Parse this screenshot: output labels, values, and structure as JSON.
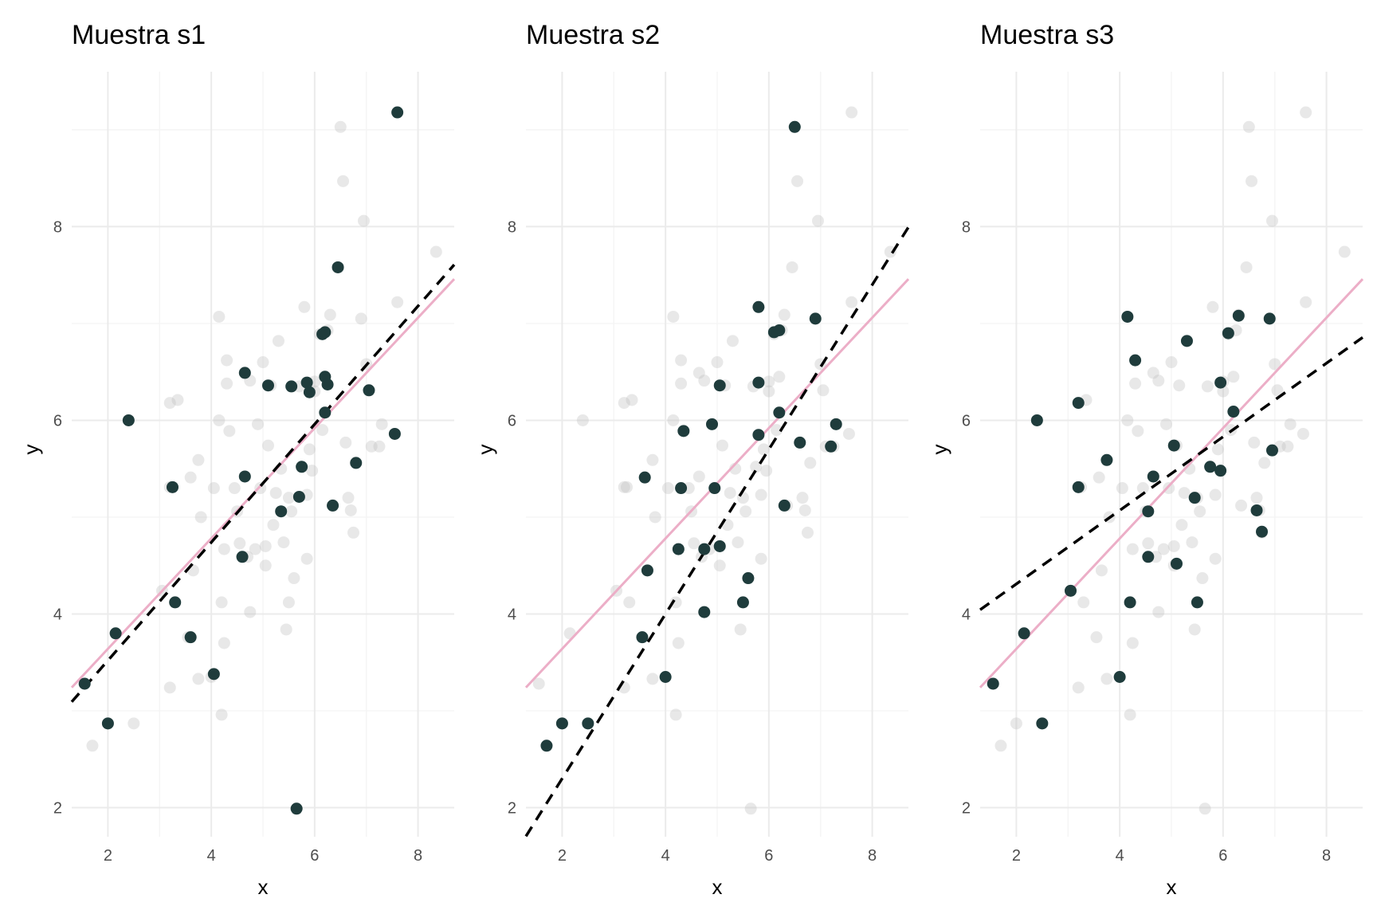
{
  "colors": {
    "background": "#ffffff",
    "grid_major": "#ebebeb",
    "grid_minor": "#f5f5f5",
    "population_point": "#bdbdbd",
    "sample_point": "#1f3c3c",
    "population_line": "#ecaec7",
    "sample_line": "#000000"
  },
  "chart_data": [
    {
      "type": "scatter",
      "title": "Muestra s1",
      "xlabel": "x",
      "ylabel": "y",
      "xlim": [
        1.3,
        8.7
      ],
      "ylim": [
        1.7,
        9.6
      ],
      "x_ticks": [
        2,
        4,
        6,
        8
      ],
      "y_ticks": [
        2,
        4,
        6,
        8
      ],
      "x_tick_labels": [
        "2",
        "4",
        "6",
        "8"
      ],
      "y_tick_labels": [
        "2",
        "4",
        "6",
        "8"
      ],
      "grid": true,
      "population_line": {
        "intercept": 2.5,
        "slope": 0.57,
        "style": "solid"
      },
      "sample_line": {
        "intercept": 2.3,
        "slope": 0.61,
        "style": "dashed"
      },
      "sample_points": [
        [
          1.55,
          3.28
        ],
        [
          2.0,
          2.87
        ],
        [
          2.15,
          3.8
        ],
        [
          2.4,
          6.0
        ],
        [
          3.25,
          5.31
        ],
        [
          3.3,
          4.12
        ],
        [
          3.6,
          3.76
        ],
        [
          4.05,
          3.38
        ],
        [
          4.6,
          4.59
        ],
        [
          4.65,
          5.42
        ],
        [
          4.65,
          6.49
        ],
        [
          5.1,
          6.36
        ],
        [
          5.35,
          5.06
        ],
        [
          5.55,
          6.35
        ],
        [
          5.7,
          5.21
        ],
        [
          5.65,
          1.99
        ],
        [
          5.75,
          5.52
        ],
        [
          5.85,
          6.39
        ],
        [
          5.9,
          6.29
        ],
        [
          6.15,
          6.89
        ],
        [
          6.2,
          6.45
        ],
        [
          6.2,
          6.91
        ],
        [
          6.2,
          6.08
        ],
        [
          6.25,
          6.37
        ],
        [
          6.35,
          5.12
        ],
        [
          6.45,
          7.58
        ],
        [
          6.8,
          5.56
        ],
        [
          7.05,
          6.31
        ],
        [
          7.55,
          5.86
        ],
        [
          7.6,
          9.18
        ]
      ]
    },
    {
      "type": "scatter",
      "title": "Muestra s2",
      "xlabel": "x",
      "ylabel": "y",
      "xlim": [
        1.3,
        8.7
      ],
      "ylim": [
        1.7,
        9.6
      ],
      "x_ticks": [
        2,
        4,
        6,
        8
      ],
      "y_ticks": [
        2,
        4,
        6,
        8
      ],
      "x_tick_labels": [
        "2",
        "4",
        "6",
        "8"
      ],
      "y_tick_labels": [
        "2",
        "4",
        "6",
        "8"
      ],
      "grid": true,
      "population_line": {
        "intercept": 2.5,
        "slope": 0.57,
        "style": "solid"
      },
      "sample_line": {
        "intercept": 0.6,
        "slope": 0.85,
        "style": "dashed"
      },
      "sample_points": [
        [
          1.7,
          2.64
        ],
        [
          2.0,
          2.87
        ],
        [
          2.5,
          2.87
        ],
        [
          3.55,
          3.76
        ],
        [
          3.6,
          5.41
        ],
        [
          3.65,
          4.45
        ],
        [
          4.0,
          3.35
        ],
        [
          4.25,
          4.67
        ],
        [
          4.3,
          5.3
        ],
        [
          4.35,
          5.89
        ],
        [
          4.75,
          4.02
        ],
        [
          4.75,
          4.67
        ],
        [
          4.9,
          5.96
        ],
        [
          4.95,
          5.3
        ],
        [
          5.05,
          4.7
        ],
        [
          5.05,
          6.36
        ],
        [
          5.5,
          4.12
        ],
        [
          5.6,
          4.37
        ],
        [
          5.8,
          7.17
        ],
        [
          5.8,
          6.39
        ],
        [
          5.8,
          5.85
        ],
        [
          6.1,
          6.91
        ],
        [
          6.2,
          6.93
        ],
        [
          6.2,
          6.08
        ],
        [
          6.3,
          5.12
        ],
        [
          6.5,
          9.03
        ],
        [
          6.6,
          5.77
        ],
        [
          6.9,
          7.05
        ],
        [
          7.2,
          5.73
        ],
        [
          7.3,
          5.96
        ]
      ]
    },
    {
      "type": "scatter",
      "title": "Muestra s3",
      "xlabel": "x",
      "ylabel": "y",
      "xlim": [
        1.3,
        8.7
      ],
      "ylim": [
        1.7,
        9.6
      ],
      "x_ticks": [
        2,
        4,
        6,
        8
      ],
      "y_ticks": [
        2,
        4,
        6,
        8
      ],
      "x_tick_labels": [
        "2",
        "4",
        "6",
        "8"
      ],
      "y_tick_labels": [
        "2",
        "4",
        "6",
        "8"
      ],
      "grid": true,
      "population_line": {
        "intercept": 2.5,
        "slope": 0.57,
        "style": "solid"
      },
      "sample_line": {
        "intercept": 3.55,
        "slope": 0.38,
        "style": "dashed"
      },
      "sample_points": [
        [
          1.55,
          3.28
        ],
        [
          2.15,
          3.8
        ],
        [
          2.4,
          6.0
        ],
        [
          2.5,
          2.87
        ],
        [
          3.05,
          4.24
        ],
        [
          3.2,
          6.18
        ],
        [
          3.2,
          5.31
        ],
        [
          3.75,
          5.59
        ],
        [
          4.0,
          3.35
        ],
        [
          4.15,
          7.07
        ],
        [
          4.2,
          4.12
        ],
        [
          4.3,
          6.62
        ],
        [
          4.55,
          5.06
        ],
        [
          4.55,
          4.59
        ],
        [
          4.65,
          5.42
        ],
        [
          5.05,
          5.74
        ],
        [
          5.1,
          4.52
        ],
        [
          5.3,
          6.82
        ],
        [
          5.45,
          5.2
        ],
        [
          5.5,
          4.12
        ],
        [
          5.75,
          5.52
        ],
        [
          5.95,
          5.48
        ],
        [
          5.95,
          6.39
        ],
        [
          6.1,
          6.9
        ],
        [
          6.2,
          6.09
        ],
        [
          6.3,
          7.08
        ],
        [
          6.65,
          5.07
        ],
        [
          6.75,
          4.85
        ],
        [
          6.9,
          7.05
        ],
        [
          6.95,
          5.69
        ]
      ]
    }
  ],
  "population_points": [
    [
      1.55,
      3.28
    ],
    [
      1.7,
      2.64
    ],
    [
      2.0,
      2.87
    ],
    [
      2.15,
      3.8
    ],
    [
      2.4,
      6.0
    ],
    [
      2.5,
      2.87
    ],
    [
      3.05,
      4.24
    ],
    [
      3.2,
      6.18
    ],
    [
      3.2,
      5.31
    ],
    [
      3.2,
      3.24
    ],
    [
      3.25,
      5.31
    ],
    [
      3.3,
      4.12
    ],
    [
      3.35,
      6.21
    ],
    [
      3.55,
      3.76
    ],
    [
      3.6,
      5.41
    ],
    [
      3.65,
      4.45
    ],
    [
      3.75,
      3.33
    ],
    [
      3.75,
      5.59
    ],
    [
      3.8,
      5.0
    ],
    [
      4.0,
      3.35
    ],
    [
      4.05,
      5.3
    ],
    [
      4.15,
      7.07
    ],
    [
      4.15,
      6.0
    ],
    [
      4.2,
      4.12
    ],
    [
      4.2,
      2.96
    ],
    [
      4.25,
      4.67
    ],
    [
      4.25,
      3.7
    ],
    [
      4.3,
      6.62
    ],
    [
      4.3,
      6.38
    ],
    [
      4.35,
      5.89
    ],
    [
      4.45,
      5.3
    ],
    [
      4.5,
      5.06
    ],
    [
      4.55,
      4.73
    ],
    [
      4.65,
      5.42
    ],
    [
      4.65,
      6.49
    ],
    [
      4.7,
      4.59
    ],
    [
      4.75,
      4.02
    ],
    [
      4.75,
      6.41
    ],
    [
      4.85,
      4.67
    ],
    [
      4.9,
      5.96
    ],
    [
      4.95,
      5.3
    ],
    [
      5.0,
      6.6
    ],
    [
      5.05,
      4.7
    ],
    [
      5.05,
      4.5
    ],
    [
      5.1,
      5.74
    ],
    [
      5.15,
      6.36
    ],
    [
      5.2,
      4.92
    ],
    [
      5.25,
      5.25
    ],
    [
      5.3,
      6.82
    ],
    [
      5.35,
      5.5
    ],
    [
      5.4,
      4.74
    ],
    [
      5.45,
      3.84
    ],
    [
      5.5,
      4.12
    ],
    [
      5.5,
      5.2
    ],
    [
      5.55,
      5.06
    ],
    [
      5.6,
      4.37
    ],
    [
      5.65,
      1.99
    ],
    [
      5.7,
      6.35
    ],
    [
      5.75,
      5.52
    ],
    [
      5.8,
      7.17
    ],
    [
      5.85,
      5.23
    ],
    [
      5.85,
      4.57
    ],
    [
      5.9,
      5.7
    ],
    [
      5.95,
      5.48
    ],
    [
      6.0,
      6.3
    ],
    [
      6.0,
      6.4
    ],
    [
      6.1,
      6.89
    ],
    [
      6.15,
      5.9
    ],
    [
      6.2,
      6.45
    ],
    [
      6.25,
      6.93
    ],
    [
      6.3,
      7.09
    ],
    [
      6.35,
      5.12
    ],
    [
      6.45,
      7.58
    ],
    [
      6.5,
      9.03
    ],
    [
      6.55,
      8.47
    ],
    [
      6.6,
      5.77
    ],
    [
      6.65,
      5.2
    ],
    [
      6.7,
      5.07
    ],
    [
      6.75,
      4.84
    ],
    [
      6.8,
      5.56
    ],
    [
      6.9,
      7.05
    ],
    [
      6.95,
      8.06
    ],
    [
      7.0,
      6.58
    ],
    [
      7.05,
      6.31
    ],
    [
      7.1,
      5.73
    ],
    [
      7.25,
      5.73
    ],
    [
      7.3,
      5.96
    ],
    [
      7.55,
      5.86
    ],
    [
      7.6,
      7.22
    ],
    [
      7.6,
      9.18
    ],
    [
      8.35,
      7.74
    ]
  ]
}
